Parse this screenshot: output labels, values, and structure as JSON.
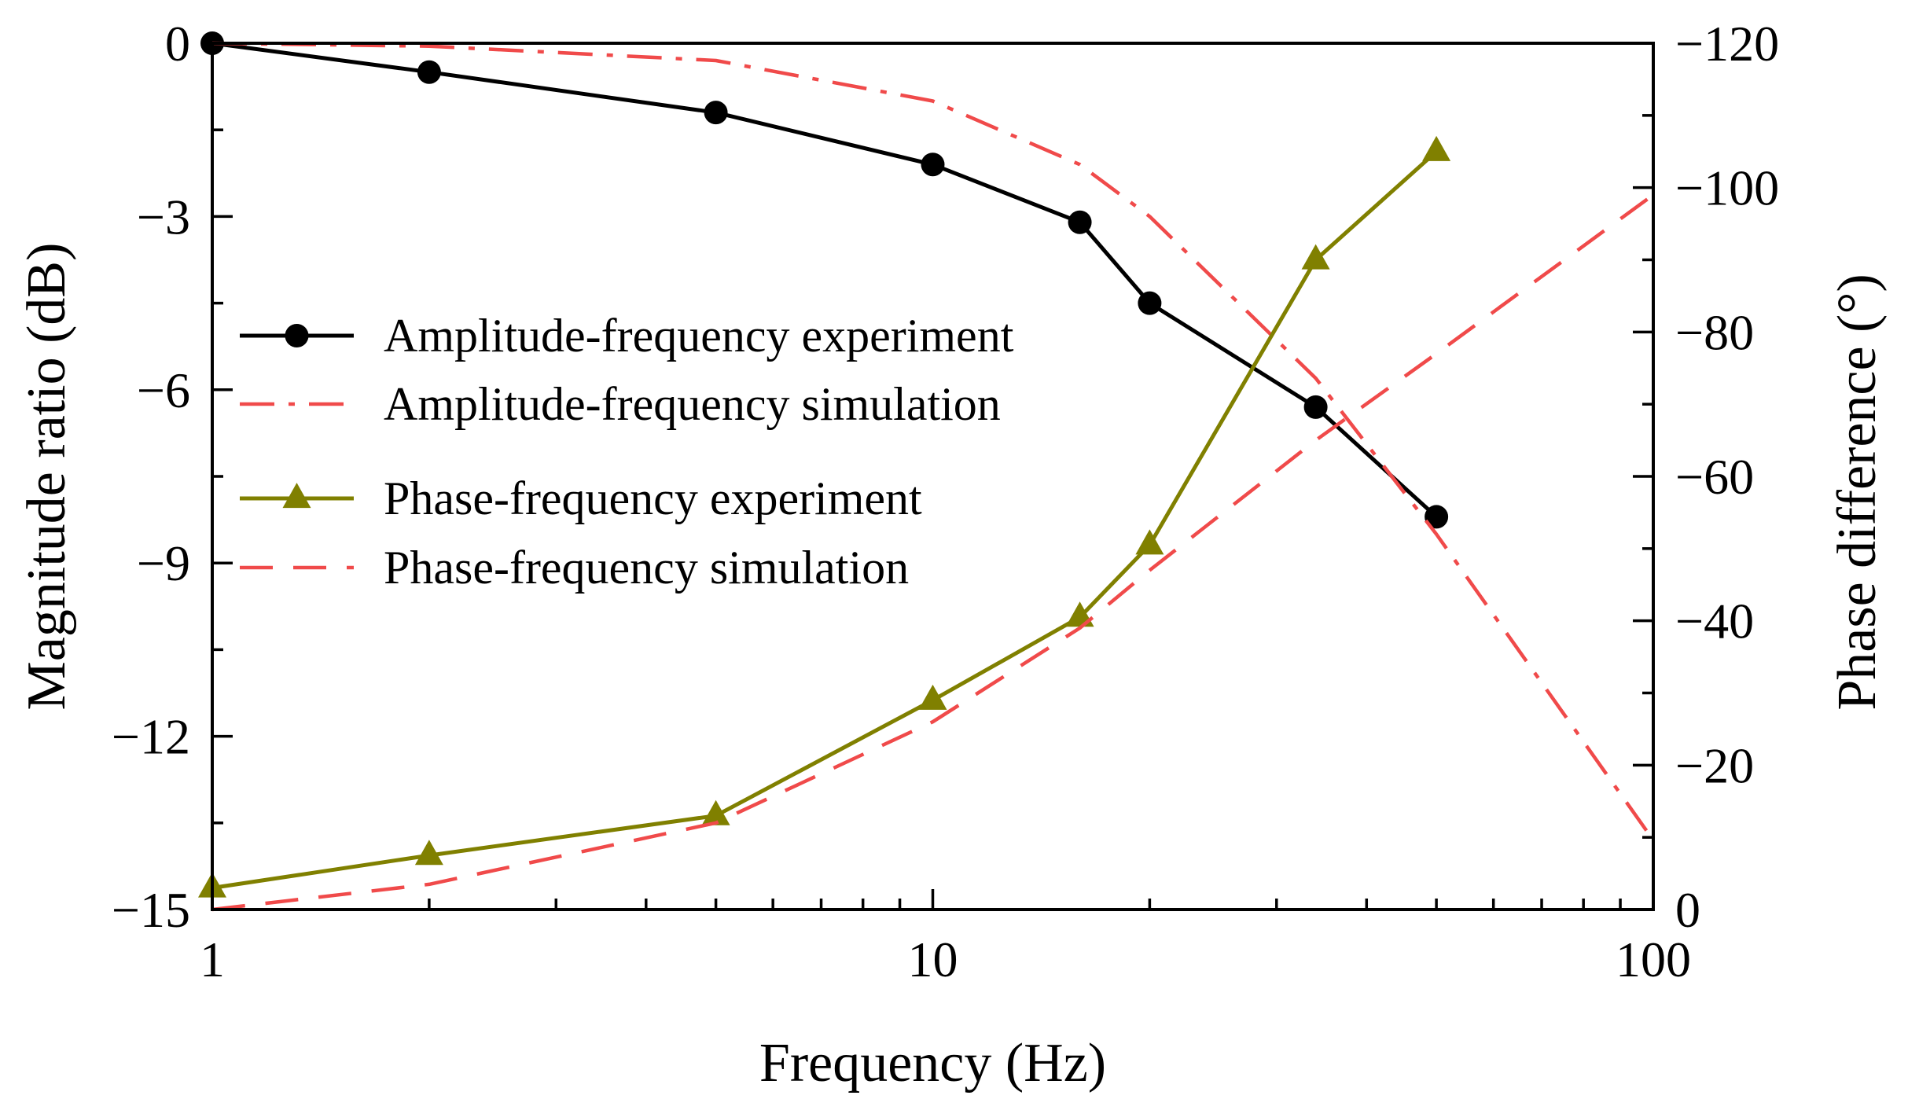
{
  "chart_data": {
    "type": "line",
    "title": "",
    "xlabel": "Frequency (Hz)",
    "ylabel_left": "Magnitude ratio (dB)",
    "ylabel_right": "Phase difference (°)",
    "xscale": "log",
    "xlim": [
      1,
      100
    ],
    "ylim_left": [
      -15,
      0
    ],
    "ylim_right": [
      0,
      -120
    ],
    "x_ticks": [
      {
        "value": 1,
        "label": "1"
      },
      {
        "value": 10,
        "label": "10"
      },
      {
        "value": 100,
        "label": "100"
      }
    ],
    "y_left_ticks": [
      {
        "value": 0,
        "label": "0"
      },
      {
        "value": -3,
        "label": "−3"
      },
      {
        "value": -6,
        "label": "−6"
      },
      {
        "value": -9,
        "label": "−9"
      },
      {
        "value": -12,
        "label": "−12"
      },
      {
        "value": -15,
        "label": "−15"
      }
    ],
    "y_right_ticks": [
      {
        "value": -120,
        "label": "−120"
      },
      {
        "value": -100,
        "label": "−100"
      },
      {
        "value": -80,
        "label": "−80"
      },
      {
        "value": -60,
        "label": "−60"
      },
      {
        "value": -40,
        "label": "−40"
      },
      {
        "value": -20,
        "label": "−20"
      },
      {
        "value": 0,
        "label": "0"
      }
    ],
    "grid": false,
    "legend_position": "middle-left",
    "series": [
      {
        "name": "Amplitude-frequency experiment",
        "axis": "left",
        "color": "#000000",
        "style": "solid",
        "marker": "circle",
        "x": [
          1,
          2,
          5,
          10,
          16,
          20,
          34,
          50
        ],
        "y": [
          0,
          -0.5,
          -1.2,
          -2.1,
          -3.1,
          -4.5,
          -6.3,
          -8.2
        ]
      },
      {
        "name": "Amplitude-frequency simulation",
        "axis": "left",
        "color": "#f04a4a",
        "style": "dash-dot",
        "marker": "none",
        "x": [
          1,
          2,
          5,
          10,
          16,
          20,
          34,
          50,
          100
        ],
        "y": [
          0,
          -0.05,
          -0.3,
          -1.0,
          -2.1,
          -3.0,
          -5.8,
          -8.5,
          -13.8
        ]
      },
      {
        "name": "Phase-frequency experiment",
        "axis": "right",
        "color": "#808000",
        "style": "solid",
        "marker": "triangle",
        "x": [
          1,
          2,
          5,
          10,
          16,
          20,
          34,
          50
        ],
        "y": [
          -3,
          -7.5,
          -13,
          -29,
          -40.5,
          -50.5,
          -90,
          -105
        ]
      },
      {
        "name": "Phase-frequency simulation",
        "axis": "right",
        "color": "#f04a4a",
        "style": "dashed",
        "marker": "none",
        "x": [
          1,
          2,
          5,
          10,
          16,
          20,
          34,
          50,
          100
        ],
        "y": [
          0,
          -3.5,
          -12,
          -26,
          -39,
          -47,
          -65,
          -77,
          -99
        ]
      }
    ]
  }
}
